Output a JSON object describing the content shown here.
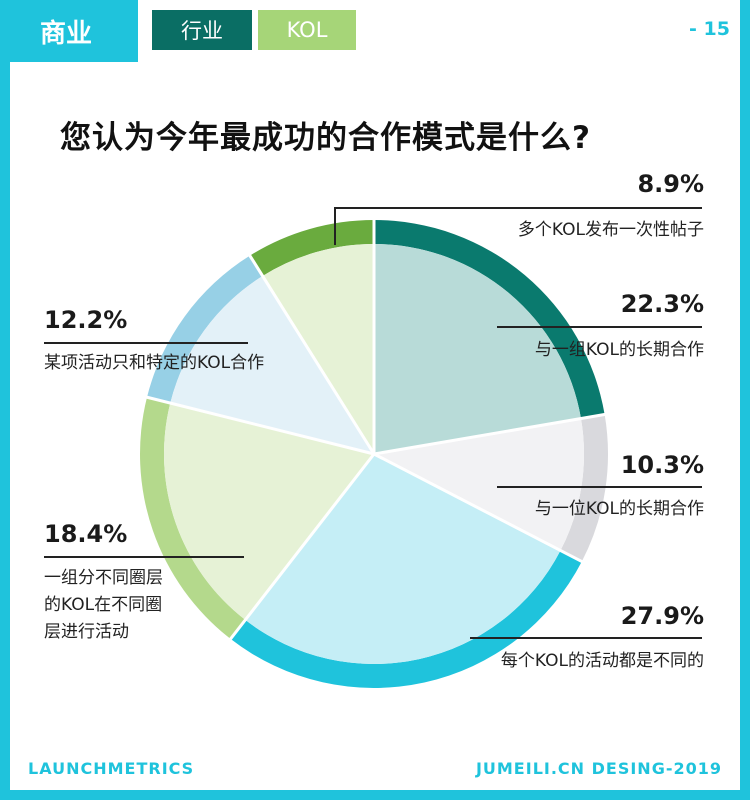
{
  "header": {
    "main_tab": "商业",
    "tabs": [
      "行业",
      "KOL"
    ],
    "page_number": "- 15"
  },
  "title": "您认为今年最成功的合作模式是什么?",
  "chart_data": {
    "type": "pie",
    "title": "您认为今年最成功的合作模式是什么?",
    "slices": [
      {
        "label": "与一组KOL的长期合作",
        "value": 22.3,
        "pct_text": "22.3%",
        "inner": "#b8dbd8",
        "outer": "#0a7a6e"
      },
      {
        "label": "与一位KOL的长期合作",
        "value": 10.3,
        "pct_text": "10.3%",
        "inner": "#f2f2f4",
        "outer": "#d9d9dd"
      },
      {
        "label": "每个KOL的活动都是不同的",
        "value": 27.9,
        "pct_text": "27.9%",
        "inner": "#c5eef6",
        "outer": "#1fc3dc"
      },
      {
        "label": "一组分不同圈层的KOL在不同圈层进行活动",
        "value": 18.4,
        "pct_text": "18.4%",
        "inner": "#e6f2d6",
        "outer": "#b4d98c"
      },
      {
        "label": "某项活动只和特定的KOL合作",
        "value": 12.2,
        "pct_text": "12.2%",
        "inner": "#e3f1f8",
        "outer": "#97d0e6"
      },
      {
        "label": "多个KOL发布一次性帖子",
        "value": 8.9,
        "pct_text": "8.9%",
        "inner": "#e6f2d6",
        "outer": "#6aab3e"
      }
    ]
  },
  "labels": {
    "s8_9": {
      "pct": "8.9%",
      "text": "多个KOL发布一次性帖子"
    },
    "s22_3": {
      "pct": "22.3%",
      "text": "与一组KOL的长期合作"
    },
    "s10_3": {
      "pct": "10.3%",
      "text": "与一位KOL的长期合作"
    },
    "s27_9": {
      "pct": "27.9%",
      "text": "每个KOL的活动都是不同的"
    },
    "s12_2": {
      "pct": "12.2%",
      "text": "某项活动只和特定的KOL合作"
    },
    "s18_4": {
      "pct": "18.4%",
      "line1": "一组分不同圈层",
      "line2": "的KOL在不同圈",
      "line3": "层进行活动"
    }
  },
  "footer": {
    "left": "LAUNCHMETRICS",
    "right": "JUMEILI.CN DESING-2019"
  }
}
